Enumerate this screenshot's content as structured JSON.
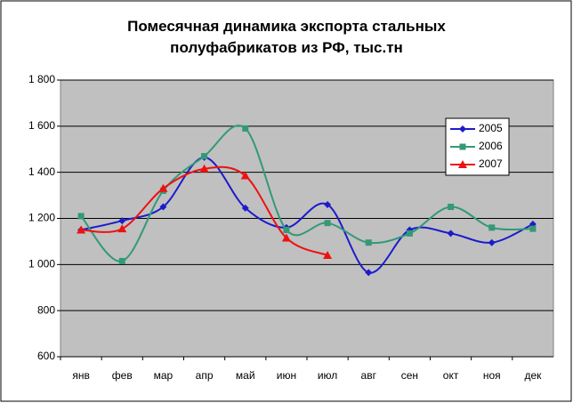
{
  "chart_data": {
    "type": "line",
    "title": "Помесячная динамика экспорта стальных полуфабрикатов из РФ, тыс.тн",
    "categories": [
      "янв",
      "фев",
      "мар",
      "апр",
      "май",
      "июн",
      "июл",
      "авг",
      "сен",
      "окт",
      "ноя",
      "дек"
    ],
    "series": [
      {
        "name": "2005",
        "color": "#1c1ccc",
        "marker": "diamond",
        "values": [
          1150,
          1190,
          1250,
          1465,
          1245,
          1160,
          1260,
          965,
          1150,
          1135,
          1095,
          1175
        ]
      },
      {
        "name": "2006",
        "color": "#339977",
        "marker": "square",
        "values": [
          1210,
          1015,
          1320,
          1470,
          1590,
          1150,
          1180,
          1095,
          1135,
          1250,
          1160,
          1155
        ]
      },
      {
        "name": "2007",
        "color": "#ee1111",
        "marker": "triangle",
        "values": [
          1150,
          1155,
          1330,
          1415,
          1385,
          1115,
          1040,
          null,
          null,
          null,
          null,
          null
        ]
      }
    ],
    "ylim": [
      600,
      1800
    ],
    "yticks": [
      600,
      800,
      {
        "value": 1000,
        "label": "1 000"
      },
      {
        "value": 1200,
        "label": "1 200"
      },
      {
        "value": 1400,
        "label": "1 400"
      },
      {
        "value": 1600,
        "label": "1 600"
      },
      {
        "value": 1800,
        "label": "1 800"
      }
    ],
    "grid": true,
    "smooth": true,
    "legend": "upper right"
  }
}
